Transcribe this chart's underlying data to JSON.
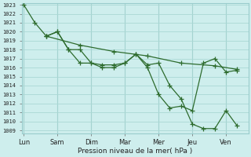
{
  "xlabel": "Pression niveau de la mer( hPa )",
  "background_color": "#ceeeed",
  "grid_color": "#aad8d5",
  "line_color": "#2d6b2d",
  "ylim": [
    1009,
    1023
  ],
  "yticks": [
    1009,
    1010,
    1011,
    1012,
    1013,
    1014,
    1015,
    1016,
    1017,
    1018,
    1019,
    1020,
    1021,
    1022,
    1023
  ],
  "x_labels": [
    "Lun",
    "Sam",
    "Dim",
    "Mar",
    "Mer",
    "Jeu",
    "Ven"
  ],
  "x_tick_pos": [
    0,
    1,
    2,
    3,
    4,
    5,
    6
  ],
  "xlim": [
    -0.05,
    6.5
  ],
  "line1_x": [
    0.0,
    0.33,
    0.67,
    1.0,
    1.33,
    1.67,
    2.0,
    2.33,
    2.67,
    3.0,
    3.33,
    3.67,
    4.0,
    4.33,
    4.67,
    5.0,
    5.33,
    5.67,
    6.0,
    6.33
  ],
  "line1_y": [
    1023.0,
    1021.0,
    1019.5,
    1020.0,
    1018.0,
    1016.5,
    1016.5,
    1016.0,
    1016.0,
    1016.5,
    1017.5,
    1016.3,
    1016.5,
    1014.0,
    1012.5,
    1009.7,
    1009.2,
    1009.2,
    1011.2,
    1009.5
  ],
  "line2_x": [
    0.67,
    1.0,
    1.33,
    1.67,
    2.0,
    2.33,
    2.67,
    3.0,
    3.33,
    3.67,
    4.0,
    4.33,
    4.67,
    5.0,
    5.33,
    5.67,
    6.0,
    6.33
  ],
  "line2_y": [
    1019.5,
    1020.0,
    1018.0,
    1018.0,
    1016.5,
    1016.3,
    1016.3,
    1016.5,
    1017.5,
    1016.0,
    1013.0,
    1011.5,
    1011.7,
    1011.2,
    1016.5,
    1017.0,
    1015.5,
    1015.7
  ],
  "line3_x": [
    0.67,
    1.67,
    2.67,
    3.67,
    4.67,
    5.67,
    6.33
  ],
  "line3_y": [
    1019.5,
    1018.5,
    1017.8,
    1017.3,
    1016.5,
    1016.2,
    1015.8
  ]
}
